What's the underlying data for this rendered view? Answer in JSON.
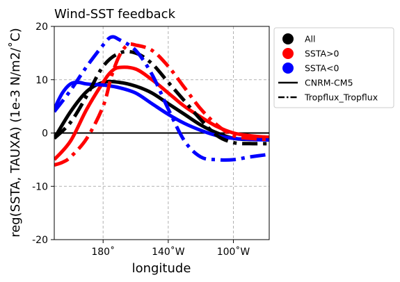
{
  "chart_data": {
    "type": "line",
    "title": "Wind-SST feedback",
    "xlabel": "longitude",
    "ylabel": "reg(SSTA, TAUXA) (1e-3 N/m2/˚C)",
    "xlim": [
      150,
      282
    ],
    "ylim": [
      -20,
      20
    ],
    "xticks": [
      {
        "value": 180,
        "label": "180˚"
      },
      {
        "value": 220,
        "label": "140˚W"
      },
      {
        "value": 260,
        "label": "100˚W"
      }
    ],
    "yticks": [
      {
        "value": 20,
        "label": "20"
      },
      {
        "value": 10,
        "label": "10"
      },
      {
        "value": 0,
        "label": "0"
      },
      {
        "value": -10,
        "label": "-10"
      },
      {
        "value": -20,
        "label": "-20"
      }
    ],
    "grid": true,
    "zero_line": true,
    "legend_position": "outside-right",
    "legend": [
      {
        "label": "All",
        "kind": "marker",
        "color": "#000000"
      },
      {
        "label": "SSTA>0",
        "kind": "marker",
        "color": "#ff0000"
      },
      {
        "label": "SSTA<0",
        "kind": "marker",
        "color": "#0000ff"
      },
      {
        "label": "CNRM-CM5",
        "kind": "solid",
        "color": "#000000"
      },
      {
        "label": "Tropflux_Tropflux",
        "kind": "dashdot",
        "color": "#000000"
      }
    ],
    "series": [
      {
        "model": "CNRM-CM5",
        "subset": "All",
        "color": "#000000",
        "style": "solid",
        "x": [
          150,
          160,
          170,
          180,
          190,
          200,
          210,
          220,
          230,
          240,
          250,
          260,
          270,
          282
        ],
        "y": [
          -1.0,
          4.0,
          7.8,
          9.5,
          9.5,
          8.8,
          7.5,
          5.5,
          3.5,
          1.5,
          0.0,
          -1.0,
          -1.2,
          -1.0
        ]
      },
      {
        "model": "CNRM-CM5",
        "subset": "SSTA>0",
        "color": "#ff0000",
        "style": "solid",
        "x": [
          150,
          160,
          170,
          180,
          185,
          190,
          200,
          210,
          220,
          230,
          240,
          250,
          260,
          270,
          282
        ],
        "y": [
          -5.0,
          -1.5,
          4.5,
          9.5,
          11.5,
          12.3,
          12.0,
          10.0,
          7.5,
          5.0,
          3.0,
          1.2,
          0.0,
          -0.5,
          -0.8
        ]
      },
      {
        "model": "CNRM-CM5",
        "subset": "SSTA<0",
        "color": "#0000ff",
        "style": "solid",
        "x": [
          150,
          155,
          160,
          165,
          170,
          180,
          190,
          200,
          210,
          220,
          230,
          240,
          250,
          260,
          270,
          282
        ],
        "y": [
          4.5,
          7.5,
          9.2,
          9.5,
          9.2,
          9.0,
          8.5,
          7.5,
          5.5,
          3.5,
          1.8,
          0.5,
          -0.5,
          -1.0,
          -1.2,
          -1.3
        ]
      },
      {
        "model": "Tropflux_Tropflux",
        "subset": "All",
        "color": "#000000",
        "style": "dashdot",
        "x": [
          150,
          160,
          170,
          180,
          190,
          200,
          210,
          220,
          230,
          240,
          250,
          260,
          270,
          282
        ],
        "y": [
          -1.0,
          2.0,
          7.0,
          12.5,
          15.0,
          15.0,
          13.0,
          9.5,
          6.0,
          2.5,
          -0.5,
          -1.8,
          -2.0,
          -2.0
        ]
      },
      {
        "model": "Tropflux_Tropflux",
        "subset": "SSTA>0",
        "color": "#ff0000",
        "style": "dashdot",
        "x": [
          150,
          155,
          160,
          170,
          180,
          185,
          190,
          195,
          200,
          210,
          220,
          230,
          240,
          250,
          260,
          270,
          282
        ],
        "y": [
          -6.0,
          -5.5,
          -4.5,
          -1.0,
          5.0,
          10.5,
          14.5,
          16.5,
          16.5,
          15.5,
          12.5,
          8.5,
          4.5,
          1.5,
          -0.5,
          -1.0,
          -1.2
        ]
      },
      {
        "model": "Tropflux_Tropflux",
        "subset": "SSTA<0",
        "color": "#0000ff",
        "style": "dashdot",
        "x": [
          150,
          160,
          170,
          180,
          185,
          190,
          200,
          210,
          220,
          230,
          240,
          250,
          260,
          270,
          282
        ],
        "y": [
          4.0,
          8.0,
          12.5,
          16.5,
          18.0,
          17.5,
          15.5,
          11.0,
          4.5,
          -1.5,
          -4.5,
          -5.0,
          -5.0,
          -4.5,
          -4.0
        ]
      }
    ]
  }
}
